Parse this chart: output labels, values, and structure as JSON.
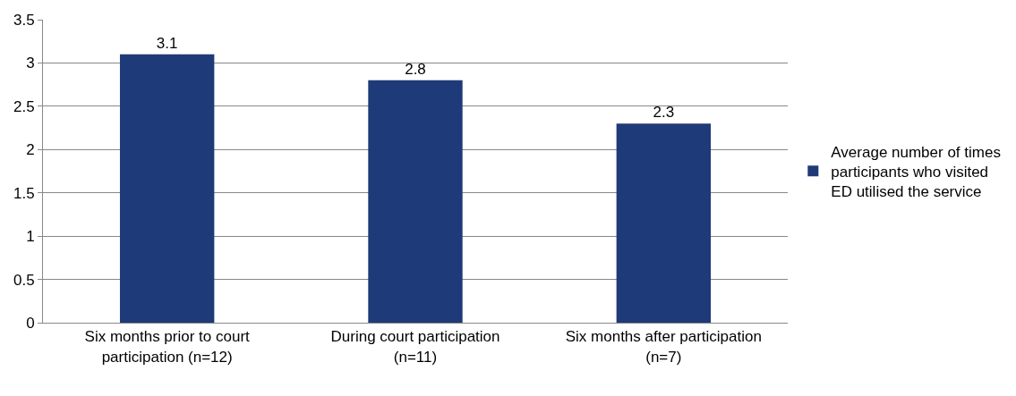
{
  "chart_data": {
    "type": "bar",
    "categories": [
      "Six months prior to court participation (n=12)",
      "During court participation (n=11)",
      "Six months after participation (n=7)"
    ],
    "series": [
      {
        "name": "Average number of times participants who visited ED utilised the service",
        "color": "#1f3a78",
        "values": [
          3.1,
          2.8,
          2.3
        ]
      }
    ],
    "ylim": [
      0,
      3.5
    ],
    "yticks": [
      0,
      0.5,
      1,
      1.5,
      2,
      2.5,
      3,
      3.5
    ],
    "grid": "y",
    "legend": "right",
    "data_labels": true
  }
}
